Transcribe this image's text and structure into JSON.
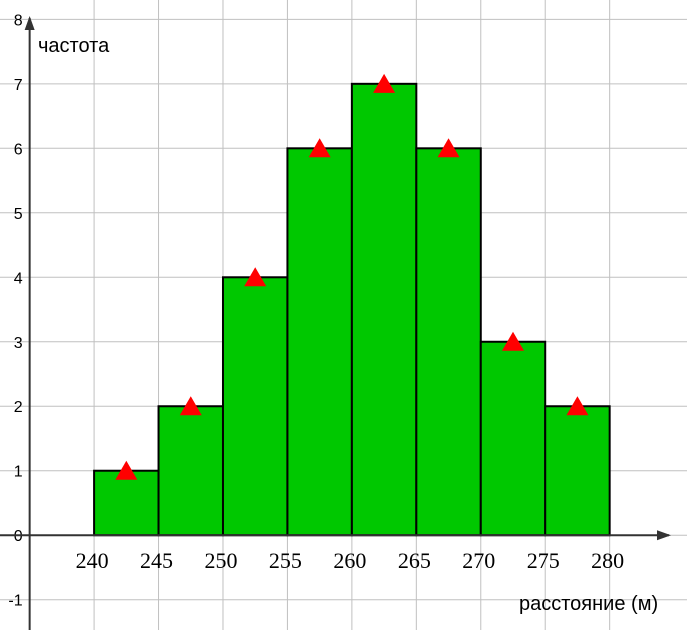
{
  "chart_data": {
    "type": "histogram",
    "x_label": "расстояние (м)",
    "y_label": "частота",
    "bins": [
      240,
      245,
      250,
      255,
      260,
      265,
      270,
      275,
      280
    ],
    "values": [
      1,
      2,
      4,
      6,
      7,
      6,
      3,
      2
    ],
    "color": "#00c800",
    "marker_color": "#ff0000",
    "xlim": [
      232.7,
      286
    ],
    "ylim": [
      -1.47,
      8.3
    ],
    "xticks": [
      240,
      245,
      250,
      255,
      260,
      265,
      270,
      275,
      280
    ],
    "yticks": [
      -1,
      0,
      1,
      2,
      3,
      4,
      5,
      6,
      7,
      8
    ],
    "grid": true
  }
}
